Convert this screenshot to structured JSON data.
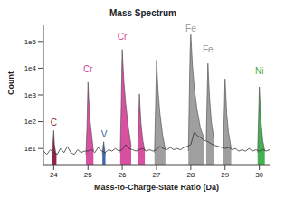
{
  "chart_data": {
    "type": "line",
    "title": "Mass Spectrum",
    "x_label": "Mass-to-Charge-State Ratio (Da)",
    "y_label": "Count",
    "log": "y",
    "grid": false,
    "xlim": [
      23.7,
      30.3
    ],
    "ylim": [
      2.5,
      400000
    ],
    "xticks": [
      24,
      25,
      26,
      27,
      28,
      29,
      30
    ],
    "yticks": [
      {
        "value": 10,
        "label": "1e1"
      },
      {
        "value": 100,
        "label": "1e2"
      },
      {
        "value": 1000,
        "label": "1e3"
      },
      {
        "value": 10000,
        "label": "1e4"
      },
      {
        "value": 100000,
        "label": "1e5"
      }
    ],
    "series": [
      {
        "type": "line",
        "color": "#333333",
        "x": [
          23.7,
          23.8,
          23.9,
          24.0,
          24.1,
          24.2,
          24.3,
          24.4,
          24.5,
          24.6,
          24.7,
          24.8,
          24.9,
          25.0,
          25.1,
          25.2,
          25.3,
          25.4,
          25.5,
          25.6,
          25.7,
          25.8,
          25.9,
          26.0,
          26.1,
          26.2,
          26.3,
          26.4,
          26.5,
          26.6,
          26.7,
          26.8,
          26.9,
          27.0,
          27.1,
          27.2,
          27.3,
          27.4,
          27.5,
          27.6,
          27.7,
          27.8,
          27.9,
          28.0,
          28.1,
          28.2,
          28.3,
          28.4,
          28.5,
          28.6,
          28.7,
          28.8,
          28.9,
          29.0,
          29.1,
          29.2,
          29.3,
          29.4,
          29.5,
          29.6,
          29.7,
          29.8,
          29.9,
          30.0,
          30.1,
          30.2,
          30.3
        ],
        "values": [
          8,
          6,
          9,
          7,
          6,
          10,
          7,
          12,
          7,
          6,
          9,
          7,
          8,
          8,
          9,
          7,
          11,
          8,
          7,
          9,
          8,
          10,
          8,
          9,
          14,
          10,
          9,
          8,
          9,
          10,
          8,
          9,
          8,
          9,
          12,
          10,
          9,
          11,
          9,
          10,
          9,
          11,
          12,
          14,
          40,
          30,
          25,
          20,
          18,
          15,
          13,
          12,
          11,
          10,
          11,
          9,
          10,
          8,
          9,
          8,
          10,
          8,
          9,
          8,
          9,
          8,
          9
        ]
      },
      {
        "type": "area",
        "color": "#8b1a3a",
        "x": [
          23.96,
          23.98,
          24.0,
          24.02,
          24.05,
          24.08
        ],
        "values": [
          6,
          18,
          47,
          15,
          8,
          6
        ]
      },
      {
        "type": "area",
        "color": "#d6479b",
        "x": [
          24.94,
          24.97,
          24.99,
          25.0,
          25.02,
          25.05,
          25.1,
          25.16
        ],
        "values": [
          6,
          60,
          900,
          3000,
          800,
          150,
          40,
          8
        ]
      },
      {
        "type": "area",
        "color": "#3a5fa8",
        "x": [
          25.42,
          25.44,
          25.46,
          25.48,
          25.51
        ],
        "values": [
          6,
          12,
          18,
          10,
          6
        ]
      },
      {
        "type": "area",
        "color": "#d6479b",
        "x": [
          25.94,
          25.97,
          25.99,
          26.0,
          26.02,
          26.05,
          26.1,
          26.18,
          26.26
        ],
        "values": [
          7,
          400,
          12000,
          50000,
          15000,
          3000,
          500,
          60,
          12
        ]
      },
      {
        "type": "area",
        "color": "#d6479b",
        "x": [
          26.45,
          26.48,
          26.5,
          26.52,
          26.55,
          26.6,
          26.66
        ],
        "values": [
          7,
          120,
          1100,
          350,
          80,
          20,
          8
        ]
      },
      {
        "type": "area",
        "color": "#9a9a9a",
        "x": [
          26.94,
          26.97,
          26.99,
          27.0,
          27.02,
          27.05,
          27.1,
          27.18,
          27.26
        ],
        "values": [
          7,
          300,
          6000,
          20000,
          6000,
          1200,
          200,
          30,
          9
        ]
      },
      {
        "type": "area",
        "color": "#9a9a9a",
        "x": [
          27.93,
          27.96,
          27.98,
          28.0,
          28.02,
          28.05,
          28.1,
          28.18,
          28.28,
          28.38
        ],
        "values": [
          8,
          1500,
          40000,
          180000,
          60000,
          12000,
          2000,
          300,
          60,
          25
        ]
      },
      {
        "type": "area",
        "color": "#9a9a9a",
        "x": [
          28.45,
          28.48,
          28.5,
          28.52,
          28.55,
          28.6,
          28.68
        ],
        "values": [
          20,
          1200,
          15000,
          4000,
          700,
          100,
          20
        ]
      },
      {
        "type": "area",
        "color": "#9a9a9a",
        "x": [
          28.95,
          28.98,
          29.0,
          29.02,
          29.05,
          29.1,
          29.18
        ],
        "values": [
          10,
          400,
          4000,
          1200,
          200,
          40,
          10
        ]
      },
      {
        "type": "area",
        "color": "#3cab4a",
        "x": [
          29.95,
          29.98,
          30.0,
          30.02,
          30.05,
          30.1,
          30.16
        ],
        "values": [
          7,
          200,
          2000,
          600,
          100,
          20,
          8
        ]
      }
    ],
    "annotations": [
      {
        "text": "C",
        "x": 24,
        "y": 90,
        "color": "#8b1a3a"
      },
      {
        "text": "Cr",
        "x": 25,
        "y": 9000,
        "color": "#d6479b"
      },
      {
        "text": "V",
        "x": 25.47,
        "y": 35,
        "color": "#3a5fa8"
      },
      {
        "text": "Cr",
        "x": 26,
        "y": 150000,
        "color": "#d6479b"
      },
      {
        "text": "Fe",
        "x": 28,
        "y": 300000,
        "color": "#9a9a9a"
      },
      {
        "text": "Fe",
        "x": 28.5,
        "y": 50000,
        "color": "#9a9a9a"
      },
      {
        "text": "Ni",
        "x": 30,
        "y": 8000,
        "color": "#3cab4a"
      }
    ]
  }
}
